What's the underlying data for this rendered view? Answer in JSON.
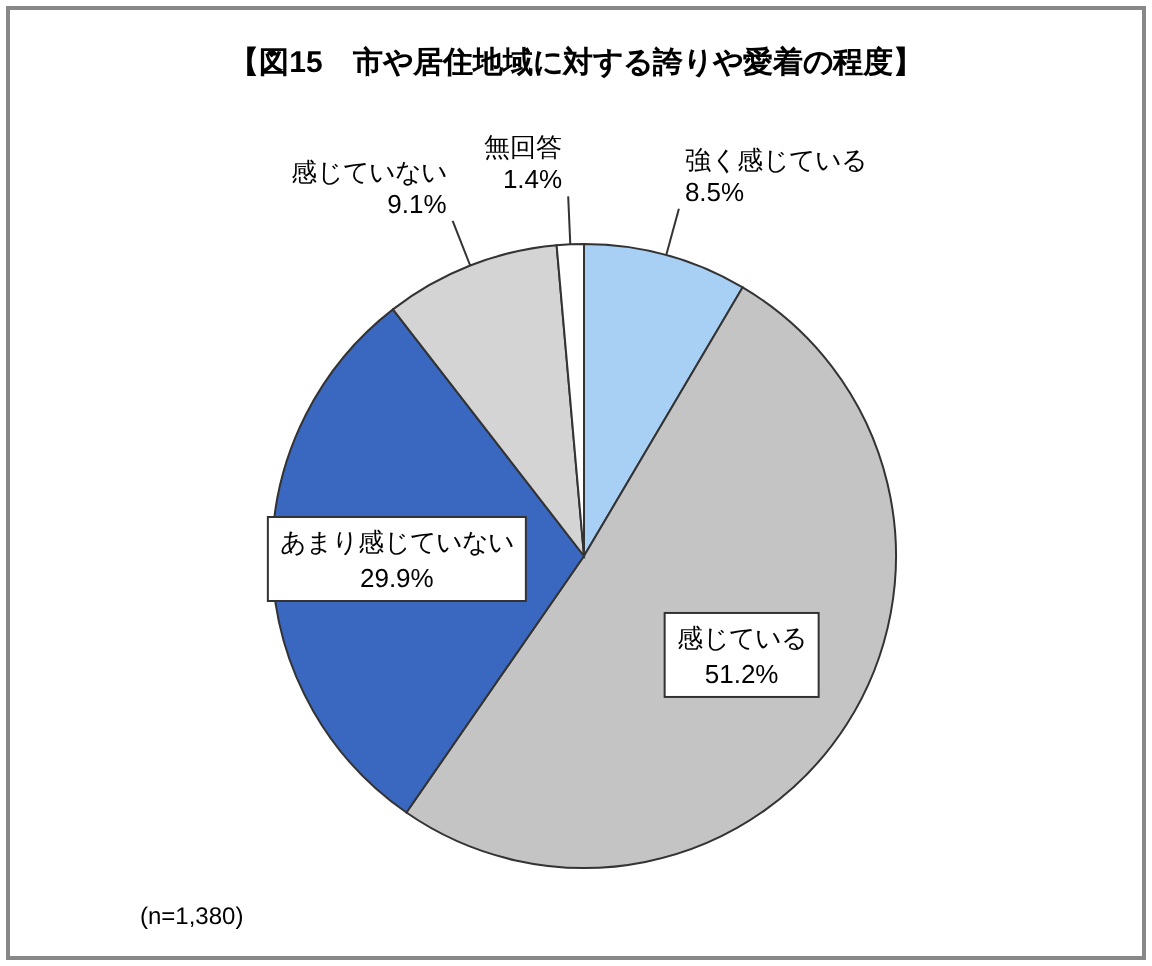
{
  "chart_data": {
    "type": "pie",
    "title": "【図15　市や居住地域に対する誇りや愛着の程度】",
    "categories": [
      "強く感じている",
      "感じている",
      "あまり感じていない",
      "感じていない",
      "無回答"
    ],
    "values": [
      8.5,
      51.2,
      29.9,
      9.1,
      1.4
    ],
    "colors": [
      "#a8d0f5",
      "#c4c4c4",
      "#3a68c0",
      "#d4d4d4",
      "#ffffff"
    ],
    "value_labels": [
      "8.5%",
      "51.2%",
      "29.9%",
      "9.1%",
      "1.4%"
    ],
    "annotations": [
      "(n=1,380)"
    ]
  }
}
